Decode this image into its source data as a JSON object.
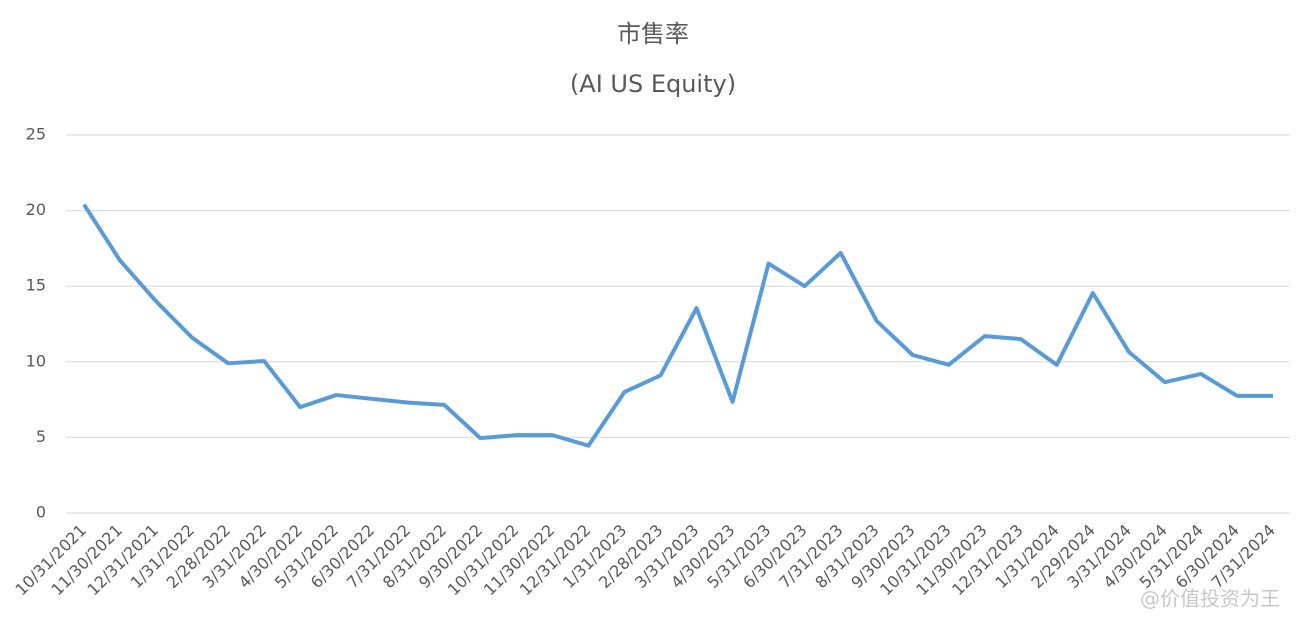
{
  "chart_data": {
    "type": "line",
    "title": "市售率",
    "subtitle": "(AI US Equity)",
    "categories": [
      "10/31/2021",
      "11/30/2021",
      "12/31/2021",
      "1/31/2022",
      "2/28/2022",
      "3/31/2022",
      "4/30/2022",
      "5/31/2022",
      "6/30/2022",
      "7/31/2022",
      "8/31/2022",
      "9/30/2022",
      "10/31/2022",
      "11/30/2022",
      "12/31/2022",
      "1/31/2023",
      "2/28/2023",
      "3/31/2023",
      "4/30/2023",
      "5/31/2023",
      "6/30/2023",
      "7/31/2023",
      "8/31/2023",
      "9/30/2023",
      "10/31/2023",
      "11/30/2023",
      "12/31/2023",
      "1/31/2024",
      "2/29/2024",
      "3/31/2024",
      "4/30/2024",
      "5/31/2024",
      "6/30/2024",
      "7/31/2024"
    ],
    "series": [
      {
        "color": "#5b9bd5",
        "values": [
          20.4,
          16.7,
          14.0,
          11.6,
          9.9,
          10.05,
          7.0,
          7.8,
          7.55,
          7.3,
          7.15,
          4.95,
          5.15,
          5.15,
          4.45,
          8.0,
          9.1,
          13.55,
          7.35,
          16.5,
          15.0,
          17.2,
          12.7,
          10.45,
          9.8,
          11.7,
          11.5,
          9.8,
          14.55,
          10.65,
          8.65,
          9.2,
          7.75,
          7.75
        ]
      }
    ],
    "ylim": [
      0,
      25
    ],
    "yticks": [
      0,
      5,
      10,
      15,
      20,
      25
    ],
    "grid": true,
    "watermark": "@价值投资为王"
  }
}
